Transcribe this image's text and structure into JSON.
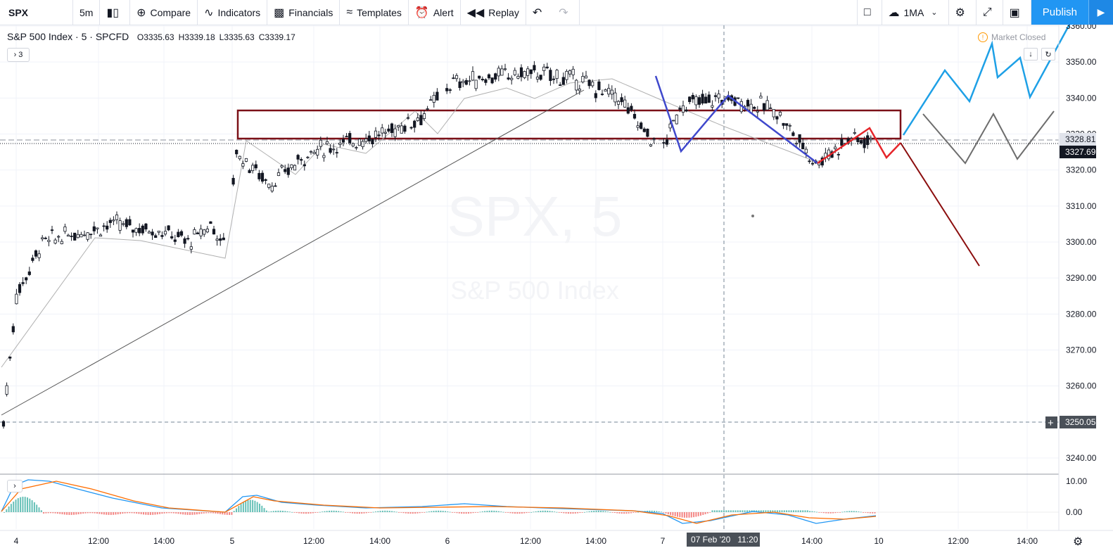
{
  "toolbar": {
    "symbol": "SPX",
    "interval": "5m",
    "compare": "Compare",
    "indicators": "Indicators",
    "financials": "Financials",
    "templates": "Templates",
    "alert": "Alert",
    "replay": "Replay",
    "layout": "1MA",
    "publish": "Publish"
  },
  "legend": {
    "title": "S&P 500 Index · 5 · SPCFD",
    "open": "O3335.63",
    "high": "H3339.18",
    "low": "L3335.63",
    "close": "C3339.17",
    "collapse": "3"
  },
  "status": {
    "market": "Market Closed"
  },
  "watermark": {
    "symbol": "SPX, 5",
    "name": "S&P 500 Index"
  },
  "price_axis": {
    "ticks": [
      "3360.00",
      "3350.00",
      "3340.00",
      "3330.00",
      "3320.00",
      "3310.00",
      "3300.00",
      "3290.00",
      "3280.00",
      "3270.00",
      "3260.00",
      "3250.00",
      "3240.00"
    ],
    "labels": {
      "last": "3328.81",
      "close": "3327.69",
      "cursor": "3250.05"
    }
  },
  "indicator_axis": {
    "ticks": [
      "10.00",
      "0.00"
    ]
  },
  "time_axis": {
    "ticks": [
      "4",
      "12:00",
      "14:00",
      "5",
      "12:00",
      "14:00",
      "6",
      "12:00",
      "14:00",
      "7",
      "14:00",
      "10",
      "12:00",
      "14:00"
    ],
    "cursor_label": "07 Feb '20   11:20"
  },
  "colors": {
    "up": "#131722",
    "zone": "#7b1018",
    "blue_path": "#3f48cc",
    "red_path": "#e5252a",
    "cyan_path": "#1ea0e6",
    "gray_path": "#6d6d6d",
    "darkred_path": "#8b0d0d",
    "macd": "#2196f3",
    "signal": "#ff6d00"
  },
  "chart_data": {
    "type": "line",
    "series": [
      {
        "name": "",
        "values": [
          3250,
          3285,
          3300,
          3303,
          3305,
          3303,
          3300,
          3305,
          3298,
          3325,
          3316,
          3325,
          3328,
          3330,
          3335,
          3344,
          3346,
          3347,
          3345,
          3340,
          3325,
          3338,
          3340,
          3337,
          3322,
          3329,
          3328
        ]
      }
    ],
    "ylim": [
      3235,
      3362
    ]
  }
}
